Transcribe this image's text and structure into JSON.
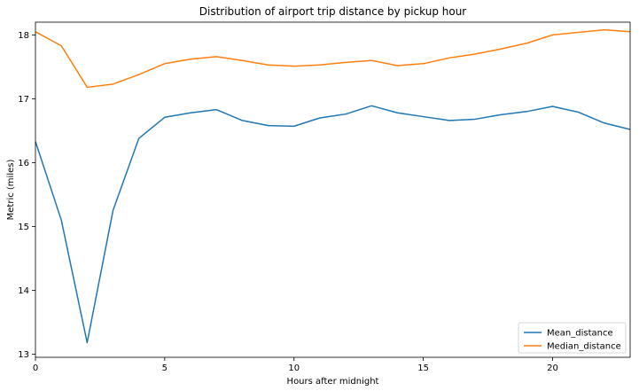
{
  "chart_data": {
    "type": "line",
    "title": "Distribution of airport trip distance by pickup hour",
    "xlabel": "Hours after midnight",
    "ylabel": "Metric (miles)",
    "xlim": [
      0,
      23
    ],
    "ylim": [
      12.95,
      18.2
    ],
    "xticks": [
      0,
      5,
      10,
      15,
      20
    ],
    "yticks": [
      13,
      14,
      15,
      16,
      17,
      18
    ],
    "x": [
      0,
      1,
      2,
      3,
      4,
      5,
      6,
      7,
      8,
      9,
      10,
      11,
      12,
      13,
      14,
      15,
      16,
      17,
      18,
      19,
      20,
      21,
      22,
      23
    ],
    "grid": false,
    "legend_position": "lower-right",
    "series": [
      {
        "name": "Mean_distance",
        "color": "#1f77b4",
        "values": [
          16.33,
          15.1,
          13.18,
          15.25,
          16.38,
          16.71,
          16.78,
          16.83,
          16.66,
          16.58,
          16.57,
          16.7,
          16.76,
          16.89,
          16.78,
          16.72,
          16.66,
          16.68,
          16.75,
          16.8,
          16.88,
          16.79,
          16.62,
          16.52
        ]
      },
      {
        "name": "Median_distance",
        "color": "#ff7f0e",
        "values": [
          18.05,
          17.83,
          17.18,
          17.23,
          17.38,
          17.55,
          17.62,
          17.66,
          17.6,
          17.53,
          17.51,
          17.53,
          17.57,
          17.6,
          17.52,
          17.55,
          17.64,
          17.7,
          17.78,
          17.87,
          18.0,
          18.04,
          18.08,
          18.05
        ]
      }
    ]
  }
}
